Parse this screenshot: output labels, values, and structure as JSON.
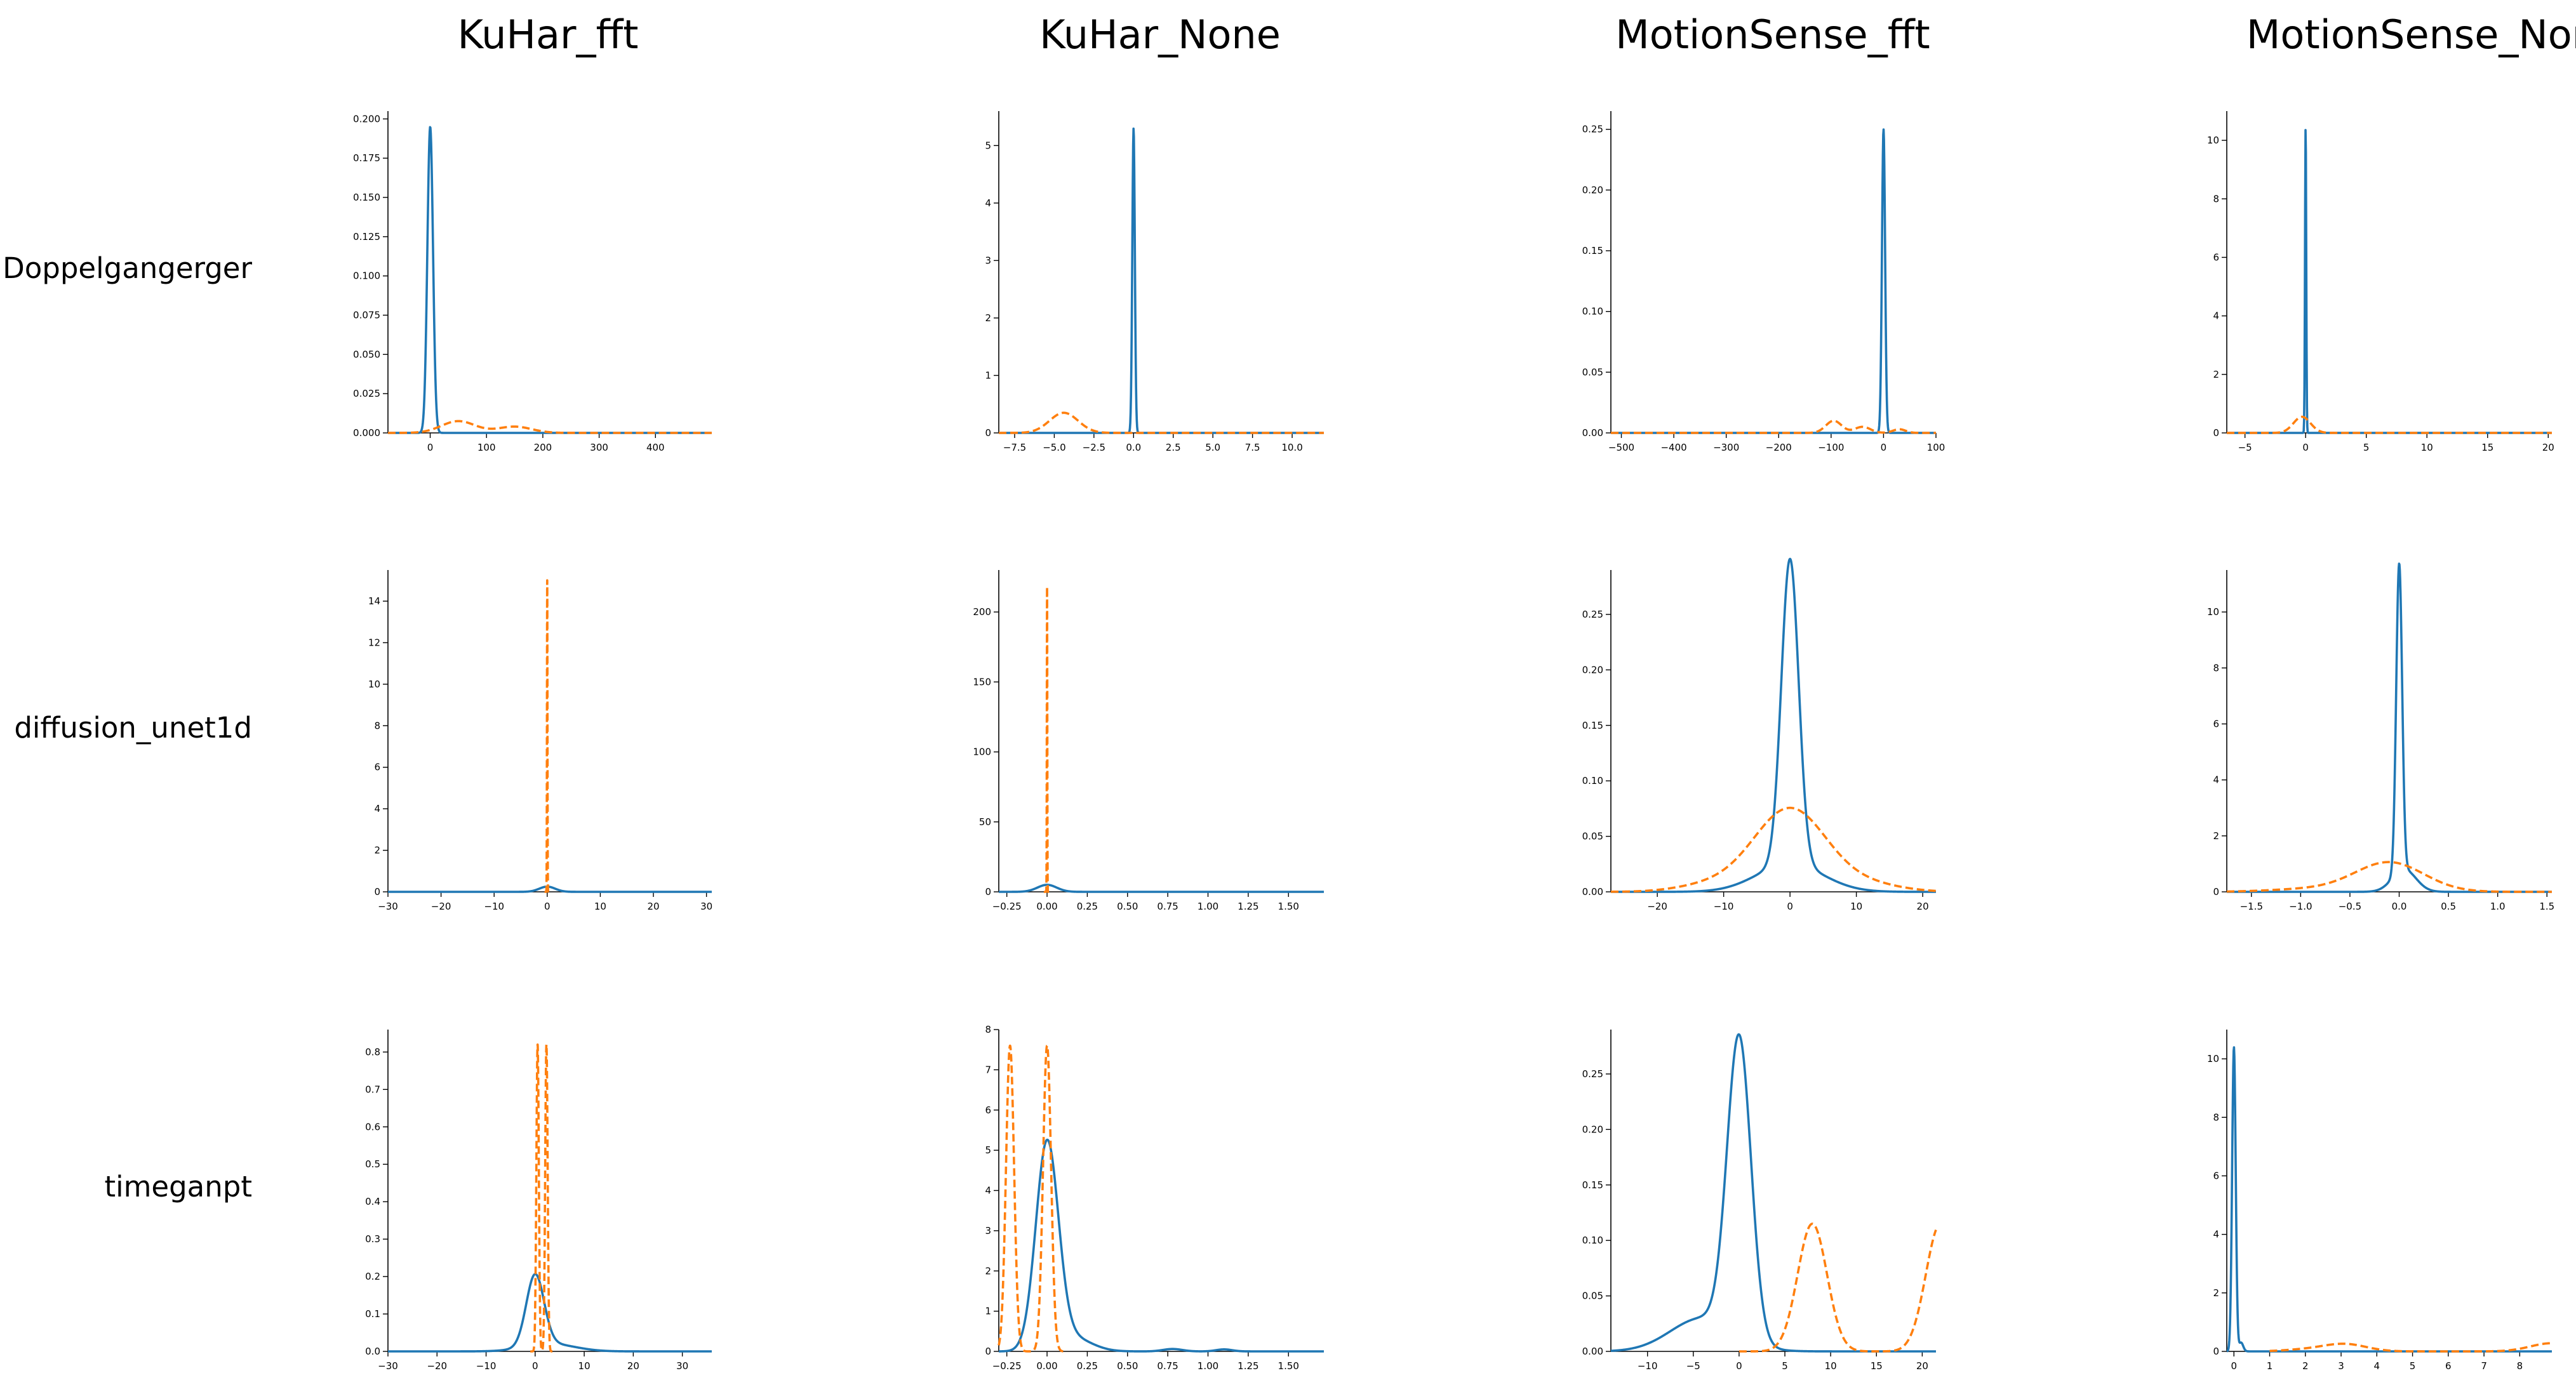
{
  "columns": [
    "KuHar_fft",
    "KuHar_None",
    "MotionSense_fft",
    "MotionSense_None"
  ],
  "rows": [
    "Doppelgangerger",
    "diffusion_unet1d",
    "timeganpt"
  ],
  "colors": {
    "real": "#1f77b4",
    "synthetic": "#ff7f0e"
  },
  "chart_data": [
    {
      "type": "line",
      "row": 0,
      "col": 0,
      "xlim": [
        -75,
        500
      ],
      "ylim": [
        0,
        0.205
      ],
      "xticks": [
        0,
        100,
        200,
        300,
        400
      ],
      "xtick_labels": [
        "0",
        "100",
        "200",
        "300",
        "400"
      ],
      "yticks": [
        0,
        0.025,
        0.05,
        0.075,
        0.1,
        0.125,
        0.15,
        0.175,
        0.2
      ],
      "ytick_labels": [
        "0.000",
        "0.025",
        "0.050",
        "0.075",
        "0.100",
        "0.125",
        "0.150",
        "0.175",
        "0.200"
      ],
      "series": [
        {
          "style": "solid",
          "peaks": [
            [
              0,
              0.195,
              5
            ]
          ],
          "baseline": [
            -75,
            500
          ]
        },
        {
          "style": "dashed",
          "peaks": [
            [
              50,
              0.0075,
              30
            ],
            [
              150,
              0.004,
              30
            ]
          ],
          "baseline": [
            -75,
            500
          ]
        }
      ]
    },
    {
      "type": "line",
      "row": 0,
      "col": 1,
      "xlim": [
        -8.5,
        12
      ],
      "ylim": [
        0,
        5.6
      ],
      "xticks": [
        -7.5,
        -5,
        -2.5,
        0,
        2.5,
        5,
        7.5,
        10
      ],
      "xtick_labels": [
        "−7.5",
        "−5.0",
        "−2.5",
        "0.0",
        "2.5",
        "5.0",
        "7.5",
        "10.0"
      ],
      "yticks": [
        0,
        1,
        2,
        3,
        4,
        5
      ],
      "ytick_labels": [
        "0",
        "1",
        "2",
        "3",
        "4",
        "5"
      ],
      "series": [
        {
          "style": "solid",
          "peaks": [
            [
              0,
              5.3,
              0.08
            ]
          ],
          "baseline": [
            -8.5,
            12
          ]
        },
        {
          "style": "dashed",
          "peaks": [
            [
              -4.4,
              0.35,
              0.9
            ]
          ],
          "baseline": [
            -8.5,
            12
          ]
        }
      ]
    },
    {
      "type": "line",
      "row": 0,
      "col": 2,
      "xlim": [
        -520,
        100
      ],
      "ylim": [
        0,
        0.265
      ],
      "xticks": [
        -500,
        -400,
        -300,
        -200,
        -100,
        0,
        100
      ],
      "xtick_labels": [
        "−500",
        "−400",
        "−300",
        "−200",
        "−100",
        "0",
        "100"
      ],
      "yticks": [
        0,
        0.05,
        0.1,
        0.15,
        0.2,
        0.25
      ],
      "ytick_labels": [
        "0.00",
        "0.05",
        "0.10",
        "0.15",
        "0.20",
        "0.25"
      ],
      "series": [
        {
          "style": "solid",
          "peaks": [
            [
              0,
              0.25,
              3
            ]
          ],
          "baseline": [
            -520,
            100
          ]
        },
        {
          "style": "dashed",
          "peaks": [
            [
              -95,
              0.01,
              15
            ],
            [
              -40,
              0.005,
              15
            ],
            [
              30,
              0.003,
              12
            ]
          ],
          "baseline": [
            -520,
            100
          ]
        }
      ]
    },
    {
      "type": "line",
      "row": 0,
      "col": 3,
      "xlim": [
        -6.5,
        20.3
      ],
      "ylim": [
        0,
        11
      ],
      "xticks": [
        -5,
        0,
        5,
        10,
        15,
        20
      ],
      "xtick_labels": [
        "−5",
        "0",
        "5",
        "10",
        "15",
        "20"
      ],
      "yticks": [
        0,
        2,
        4,
        6,
        8,
        10
      ],
      "ytick_labels": [
        "0",
        "2",
        "4",
        "6",
        "8",
        "10"
      ],
      "series": [
        {
          "style": "solid",
          "peaks": [
            [
              0,
              10.5,
              0.05
            ]
          ],
          "baseline": [
            -6.5,
            20.3
          ]
        },
        {
          "style": "dashed",
          "peaks": [
            [
              -0.3,
              0.55,
              0.7
            ]
          ],
          "baseline": [
            -6.5,
            20.3
          ]
        }
      ]
    },
    {
      "type": "line",
      "row": 1,
      "col": 0,
      "xlim": [
        -30,
        31
      ],
      "ylim": [
        0,
        15.5
      ],
      "xticks": [
        -30,
        -20,
        -10,
        0,
        10,
        20,
        30
      ],
      "xtick_labels": [
        "−30",
        "−20",
        "−10",
        "0",
        "10",
        "20",
        "30"
      ],
      "yticks": [
        0,
        2,
        4,
        6,
        8,
        10,
        12,
        14
      ],
      "ytick_labels": [
        "0",
        "2",
        "4",
        "6",
        "8",
        "10",
        "12",
        "14"
      ],
      "series": [
        {
          "style": "solid",
          "peaks": [
            [
              0,
              0.25,
              1.5
            ]
          ],
          "baseline": [
            -30,
            31
          ]
        },
        {
          "style": "dashed",
          "peaks": [
            [
              0,
              15,
              0.05
            ]
          ],
          "baseline": [
            -0.5,
            0.5
          ]
        }
      ]
    },
    {
      "type": "line",
      "row": 1,
      "col": 1,
      "xlim": [
        -0.3,
        1.72
      ],
      "ylim": [
        0,
        230
      ],
      "xticks": [
        -0.25,
        0,
        0.25,
        0.5,
        0.75,
        1,
        1.25,
        1.5
      ],
      "xtick_labels": [
        "−0.25",
        "0.00",
        "0.25",
        "0.50",
        "0.75",
        "1.00",
        "1.25",
        "1.50"
      ],
      "yticks": [
        0,
        50,
        100,
        150,
        200
      ],
      "ytick_labels": [
        "0",
        "50",
        "100",
        "150",
        "200"
      ],
      "series": [
        {
          "style": "solid",
          "peaks": [
            [
              0,
              5,
              0.06
            ]
          ],
          "baseline": [
            -0.3,
            1.72
          ]
        },
        {
          "style": "dashed",
          "peaks": [
            [
              0,
              218,
              0.0015
            ]
          ],
          "baseline": [
            -0.02,
            0.02
          ]
        }
      ]
    },
    {
      "type": "line",
      "row": 1,
      "col": 2,
      "xlim": [
        -27,
        22
      ],
      "ylim": [
        0,
        0.29
      ],
      "xticks": [
        -20,
        -10,
        0,
        10,
        20
      ],
      "xtick_labels": [
        "−20",
        "−10",
        "0",
        "10",
        "20"
      ],
      "yticks": [
        0,
        0.05,
        0.1,
        0.15,
        0.2,
        0.25
      ],
      "ytick_labels": [
        "0.00",
        "0.05",
        "0.10",
        "0.15",
        "0.20",
        "0.25"
      ],
      "series": [
        {
          "style": "solid",
          "peaks": [
            [
              0,
              0.275,
              1.3
            ],
            [
              0,
              0.025,
              5
            ]
          ],
          "baseline": [
            -27,
            22
          ]
        },
        {
          "style": "dashed",
          "peaks": [
            [
              0,
              0.075,
              5.5
            ],
            [
              -12,
              0.006,
              5
            ],
            [
              12,
              0.006,
              5
            ]
          ],
          "baseline": [
            -27,
            22
          ]
        }
      ]
    },
    {
      "type": "line",
      "row": 1,
      "col": 3,
      "xlim": [
        -1.75,
        1.55
      ],
      "ylim": [
        0,
        11.5
      ],
      "xticks": [
        -1.5,
        -1,
        -0.5,
        0,
        0.5,
        1,
        1.5
      ],
      "xtick_labels": [
        "−1.5",
        "−1.0",
        "−0.5",
        "0.0",
        "0.5",
        "1.0",
        "1.5"
      ],
      "yticks": [
        0,
        2,
        4,
        6,
        8,
        10
      ],
      "ytick_labels": [
        "0",
        "2",
        "4",
        "6",
        "8",
        "10"
      ],
      "series": [
        {
          "style": "solid",
          "peaks": [
            [
              0,
              11,
              0.03
            ],
            [
              0.05,
              0.8,
              0.12
            ]
          ],
          "baseline": [
            -1.75,
            1.55
          ]
        },
        {
          "style": "dashed",
          "peaks": [
            [
              -0.1,
              1.05,
              0.35
            ],
            [
              -0.9,
              0.1,
              0.4
            ]
          ],
          "baseline": [
            -1.75,
            1.55
          ]
        }
      ]
    },
    {
      "type": "line",
      "row": 2,
      "col": 0,
      "xlim": [
        -30,
        36
      ],
      "ylim": [
        0,
        0.86
      ],
      "xticks": [
        -30,
        -20,
        -10,
        0,
        10,
        20,
        30
      ],
      "xtick_labels": [
        "−30",
        "−20",
        "−10",
        "0",
        "10",
        "20",
        "30"
      ],
      "yticks": [
        0,
        0.1,
        0.2,
        0.3,
        0.4,
        0.5,
        0.6,
        0.7,
        0.8
      ],
      "ytick_labels": [
        "0.0",
        "0.1",
        "0.2",
        "0.3",
        "0.4",
        "0.5",
        "0.6",
        "0.7",
        "0.8"
      ],
      "series": [
        {
          "style": "solid",
          "peaks": [
            [
              0,
              0.19,
              1.8
            ],
            [
              3,
              0.02,
              5
            ]
          ],
          "baseline": [
            -30,
            36
          ]
        },
        {
          "style": "dashed",
          "peaks": [
            [
              0.5,
              0.82,
              0.25
            ],
            [
              2.3,
              0.82,
              0.25
            ]
          ],
          "baseline": [
            -1,
            4
          ]
        }
      ]
    },
    {
      "type": "line",
      "row": 2,
      "col": 1,
      "xlim": [
        -0.3,
        1.72
      ],
      "ylim": [
        0,
        8
      ],
      "xticks": [
        -0.25,
        0,
        0.25,
        0.5,
        0.75,
        1,
        1.25,
        1.5
      ],
      "xtick_labels": [
        "−0.25",
        "0.00",
        "0.25",
        "0.50",
        "0.75",
        "1.00",
        "1.25",
        "1.50"
      ],
      "yticks": [
        0,
        1,
        2,
        3,
        4,
        5,
        6,
        7,
        8
      ],
      "ytick_labels": [
        "0",
        "1",
        "2",
        "3",
        "4",
        "5",
        "6",
        "7",
        "8"
      ],
      "series": [
        {
          "style": "solid",
          "peaks": [
            [
              0,
              5.1,
              0.07
            ],
            [
              0.15,
              0.35,
              0.12
            ],
            [
              0.78,
              0.06,
              0.06
            ],
            [
              1.1,
              0.05,
              0.05
            ]
          ],
          "baseline": [
            -0.3,
            1.72
          ]
        },
        {
          "style": "dashed",
          "peaks": [
            [
              -0.23,
              7.6,
              0.025
            ],
            [
              0,
              7.6,
              0.025
            ]
          ],
          "baseline": [
            -0.3,
            0.1
          ]
        }
      ]
    },
    {
      "type": "line",
      "row": 2,
      "col": 2,
      "xlim": [
        -14,
        21.5
      ],
      "ylim": [
        0,
        0.29
      ],
      "xticks": [
        -10,
        -5,
        0,
        5,
        10,
        15,
        20
      ],
      "xtick_labels": [
        "−10",
        "−5",
        "0",
        "5",
        "10",
        "15",
        "20"
      ],
      "yticks": [
        0,
        0.05,
        0.1,
        0.15,
        0.2,
        0.25
      ],
      "ytick_labels": [
        "0.00",
        "0.05",
        "0.10",
        "0.15",
        "0.20",
        "0.25"
      ],
      "series": [
        {
          "style": "solid",
          "peaks": [
            [
              0,
              0.27,
              1.3
            ],
            [
              -4,
              0.03,
              3.5
            ]
          ],
          "baseline": [
            -14,
            21.5
          ]
        },
        {
          "style": "dashed",
          "peaks": [
            [
              8,
              0.115,
              1.6
            ],
            [
              22,
              0.115,
              1.6
            ]
          ],
          "baseline": [
            0,
            21.5
          ]
        }
      ]
    },
    {
      "type": "line",
      "row": 2,
      "col": 3,
      "xlim": [
        -0.2,
        8.9
      ],
      "ylim": [
        0,
        11
      ],
      "xticks": [
        0,
        1,
        2,
        3,
        4,
        5,
        6,
        7,
        8
      ],
      "xtick_labels": [
        "0",
        "1",
        "2",
        "3",
        "4",
        "5",
        "6",
        "7",
        "8"
      ],
      "yticks": [
        0,
        2,
        4,
        6,
        8,
        10
      ],
      "ytick_labels": [
        "0",
        "2",
        "4",
        "6",
        "8",
        "10"
      ],
      "series": [
        {
          "style": "solid",
          "peaks": [
            [
              0,
              10.4,
              0.05
            ],
            [
              0.2,
              0.3,
              0.06
            ]
          ],
          "baseline": [
            -0.2,
            8.9
          ]
        },
        {
          "style": "dashed",
          "peaks": [
            [
              3.1,
              0.25,
              0.6
            ],
            [
              8.9,
              0.28,
              0.6
            ],
            [
              2,
              0.06,
              0.6
            ]
          ],
          "baseline": [
            1,
            8.9
          ]
        }
      ]
    }
  ]
}
